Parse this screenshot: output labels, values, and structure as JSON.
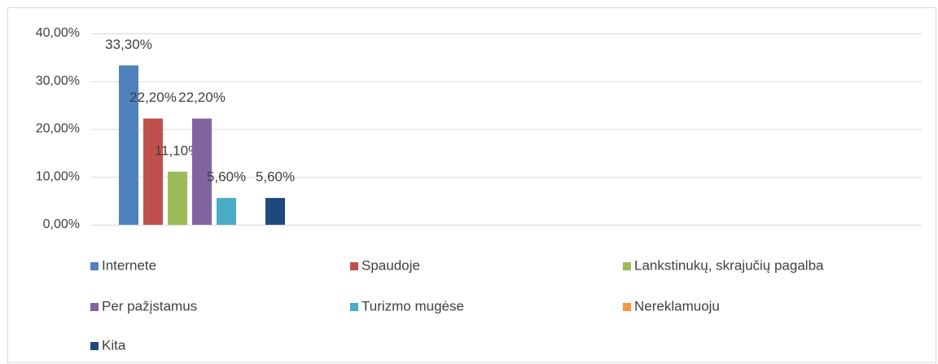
{
  "chart_data": {
    "type": "bar",
    "series": [
      {
        "name": "Internete",
        "color": "#4f81bd",
        "values": [
          33.3
        ],
        "value_labels": [
          "33,30%"
        ]
      },
      {
        "name": "Spaudoje",
        "color": "#c0504d",
        "values": [
          22.2
        ],
        "value_labels": [
          "22,20%"
        ]
      },
      {
        "name": "Lankstinukų, skrajučių pagalba",
        "color": "#9bbb59",
        "values": [
          11.1
        ],
        "value_labels": [
          "11,10%"
        ]
      },
      {
        "name": "Per pažįstamus",
        "color": "#8064a2",
        "values": [
          22.2
        ],
        "value_labels": [
          "22,20%"
        ]
      },
      {
        "name": "Turizmo mugėse",
        "color": "#4bacc6",
        "values": [
          5.6
        ],
        "value_labels": [
          "5,60%"
        ]
      },
      {
        "name": "Nereklamuoju",
        "color": "#f79646",
        "values": [
          0
        ]
      },
      {
        "name": "Kita",
        "color": "#1f497d",
        "values": [
          5.6
        ],
        "value_labels": [
          "5,60%"
        ]
      }
    ],
    "ylim": [
      0,
      40
    ],
    "yticks": [
      {
        "value": 0,
        "label": "0,00%"
      },
      {
        "value": 10,
        "label": "10,00%"
      },
      {
        "value": 20,
        "label": "20,00%"
      },
      {
        "value": 30,
        "label": "30,00%"
      },
      {
        "value": 40,
        "label": "40,00%"
      }
    ],
    "grid": true,
    "legend": "bottom"
  }
}
